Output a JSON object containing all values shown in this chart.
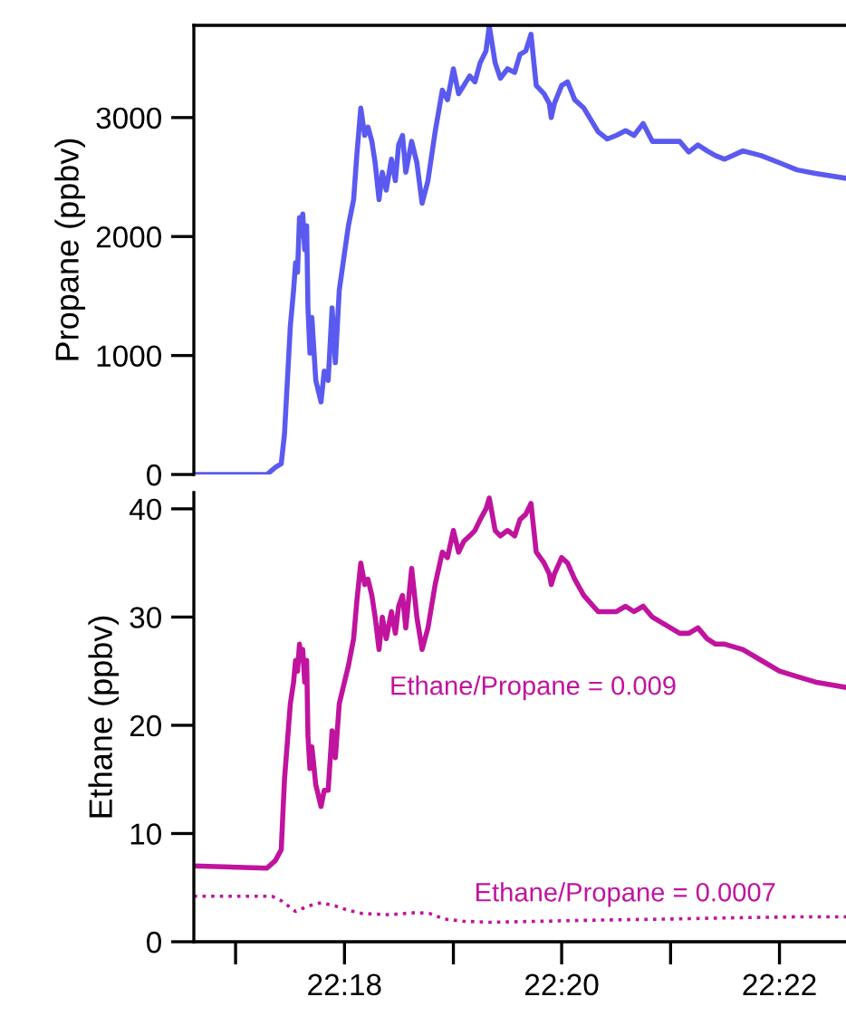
{
  "chart_data": [
    {
      "type": "line",
      "ylabel": "Propane (ppbv)",
      "xlim": [
        22.2769,
        22.3769
      ],
      "ylim": [
        0,
        3775
      ],
      "yticks": [
        0,
        1000,
        2000,
        3000
      ],
      "tick_labels": "y",
      "grid": false,
      "legend": false,
      "line_style": "solid",
      "marker": "none",
      "x": [
        22.2769,
        22.2881,
        22.2894,
        22.2903,
        22.2908,
        22.2917,
        22.2922,
        22.2925,
        22.2928,
        22.2931,
        22.2933,
        22.2936,
        22.2939,
        22.2942,
        22.2944,
        22.2947,
        22.295,
        22.2956,
        22.2964,
        22.2969,
        22.2975,
        22.2981,
        22.2986,
        22.2992,
        22.3,
        22.3006,
        22.3014,
        22.3019,
        22.3025,
        22.3031,
        22.3036,
        22.3042,
        22.3047,
        22.3053,
        22.3058,
        22.3064,
        22.3072,
        22.3078,
        22.3083,
        22.3089,
        22.3094,
        22.3103,
        22.3111,
        22.3119,
        22.3128,
        22.3139,
        22.315,
        22.3158,
        22.3167,
        22.3175,
        22.3183,
        22.3192,
        22.32,
        22.3208,
        22.3217,
        22.3222,
        22.3231,
        22.3239,
        22.325,
        22.3261,
        22.3269,
        22.3278,
        22.3286,
        22.3294,
        22.3306,
        22.3314,
        22.3317,
        22.3322,
        22.3333,
        22.3342,
        22.3353,
        22.3367,
        22.3389,
        22.3403,
        22.3417,
        22.3431,
        22.3444,
        22.3458,
        22.3472,
        22.3486,
        22.3514,
        22.3528,
        22.3542,
        22.3556,
        22.3569,
        22.3583,
        22.3611,
        22.3639,
        22.3667,
        22.3694,
        22.3722,
        22.3769
      ],
      "series": [
        {
          "color": "#5a5af0",
          "values": [
            0,
            0,
            60,
            90,
            340,
            1250,
            1550,
            1780,
            1700,
            2160,
            2010,
            2190,
            1890,
            2090,
            1400,
            1020,
            1320,
            790,
            610,
            870,
            790,
            1400,
            940,
            1550,
            1860,
            2090,
            2310,
            2690,
            3080,
            2850,
            2920,
            2800,
            2620,
            2310,
            2540,
            2390,
            2650,
            2470,
            2770,
            2850,
            2540,
            2800,
            2620,
            2280,
            2470,
            2880,
            3230,
            3150,
            3410,
            3200,
            3270,
            3350,
            3300,
            3460,
            3560,
            3770,
            3460,
            3330,
            3410,
            3380,
            3530,
            3560,
            3700,
            3270,
            3200,
            3120,
            3000,
            3120,
            3270,
            3300,
            3150,
            3080,
            2880,
            2820,
            2850,
            2890,
            2850,
            2950,
            2800,
            2800,
            2800,
            2710,
            2770,
            2720,
            2680,
            2650,
            2720,
            2680,
            2620,
            2560,
            2530,
            2490
          ]
        }
      ]
    },
    {
      "type": "line",
      "ylabel": "Ethane (ppbv)",
      "xlim": [
        22.2769,
        22.3769
      ],
      "ylim": [
        0,
        41.5
      ],
      "yticks": [
        0,
        10,
        20,
        30,
        40
      ],
      "xticks": [
        {
          "value": 22.2833,
          "label": null
        },
        {
          "value": 22.3,
          "label": "22:18"
        },
        {
          "value": 22.3167,
          "label": null
        },
        {
          "value": 22.3333,
          "label": "22:20"
        },
        {
          "value": 22.35,
          "label": null
        },
        {
          "value": 22.3667,
          "label": "22:22"
        }
      ],
      "grid": false,
      "legend": false,
      "marker": "none",
      "x": [
        22.2769,
        22.2881,
        22.2894,
        22.2903,
        22.2908,
        22.2917,
        22.2922,
        22.2925,
        22.2928,
        22.2931,
        22.2933,
        22.2936,
        22.2939,
        22.2942,
        22.2944,
        22.2947,
        22.295,
        22.2956,
        22.2964,
        22.2969,
        22.2975,
        22.2981,
        22.2986,
        22.2992,
        22.3,
        22.3006,
        22.3014,
        22.3019,
        22.3025,
        22.3031,
        22.3036,
        22.3042,
        22.3047,
        22.3053,
        22.3058,
        22.3064,
        22.3072,
        22.3078,
        22.3083,
        22.3089,
        22.3094,
        22.3103,
        22.3111,
        22.3119,
        22.3128,
        22.3139,
        22.315,
        22.3158,
        22.3167,
        22.3175,
        22.3183,
        22.3192,
        22.32,
        22.3208,
        22.3217,
        22.3222,
        22.3231,
        22.3239,
        22.325,
        22.3261,
        22.3269,
        22.3278,
        22.3286,
        22.3294,
        22.3306,
        22.3314,
        22.3317,
        22.3322,
        22.3333,
        22.3342,
        22.3353,
        22.3367,
        22.3389,
        22.3403,
        22.3417,
        22.3431,
        22.3444,
        22.3458,
        22.3472,
        22.3486,
        22.3514,
        22.3528,
        22.3542,
        22.3556,
        22.3569,
        22.3583,
        22.3611,
        22.3639,
        22.3667,
        22.3694,
        22.3722,
        22.3769
      ],
      "series": [
        {
          "name": "Ethane/Propane = 0.009",
          "color": "#c0139e",
          "line_style": "solid",
          "values": [
            7,
            6.8,
            7.5,
            8.5,
            15,
            22,
            24,
            26,
            25,
            27.5,
            26,
            27,
            24,
            26,
            19,
            16,
            18,
            14.5,
            12.5,
            14,
            14,
            19.5,
            17,
            22,
            24,
            25.5,
            28,
            31.5,
            35,
            33,
            33.5,
            32,
            30,
            27,
            30,
            28,
            30.5,
            28.5,
            31,
            32,
            29,
            34.5,
            30,
            27,
            29,
            33,
            36,
            35.5,
            38,
            36,
            37,
            37.5,
            38,
            39,
            40,
            41,
            38,
            37.5,
            38,
            37.5,
            39,
            39.5,
            40.5,
            36,
            35,
            34,
            33,
            34,
            35.5,
            35,
            33.5,
            32,
            30.5,
            30.5,
            30.5,
            31,
            30.5,
            31,
            30,
            29.5,
            28.5,
            28.5,
            29,
            28,
            27.5,
            27.5,
            27,
            26,
            25,
            24.5,
            24,
            23.5
          ]
        },
        {
          "name": "Ethane/Propane = 0.0007",
          "color": "#c0139e",
          "line_style": "dotted",
          "x": [
            22.2769,
            22.2833,
            22.2889,
            22.2903,
            22.2925,
            22.2944,
            22.2964,
            22.2986,
            22.3006,
            22.3028,
            22.3069,
            22.3111,
            22.3131,
            22.3153,
            22.3181,
            22.3222,
            22.3306,
            22.3389,
            22.35,
            22.3583,
            22.3694,
            22.3769
          ],
          "values": [
            4.2,
            4.2,
            4.2,
            3.8,
            2.8,
            3.3,
            3.6,
            3.3,
            2.9,
            2.6,
            2.5,
            2.7,
            2.6,
            2.1,
            1.9,
            1.8,
            1.9,
            2.0,
            2.1,
            2.2,
            2.3,
            2.3
          ]
        }
      ]
    }
  ]
}
